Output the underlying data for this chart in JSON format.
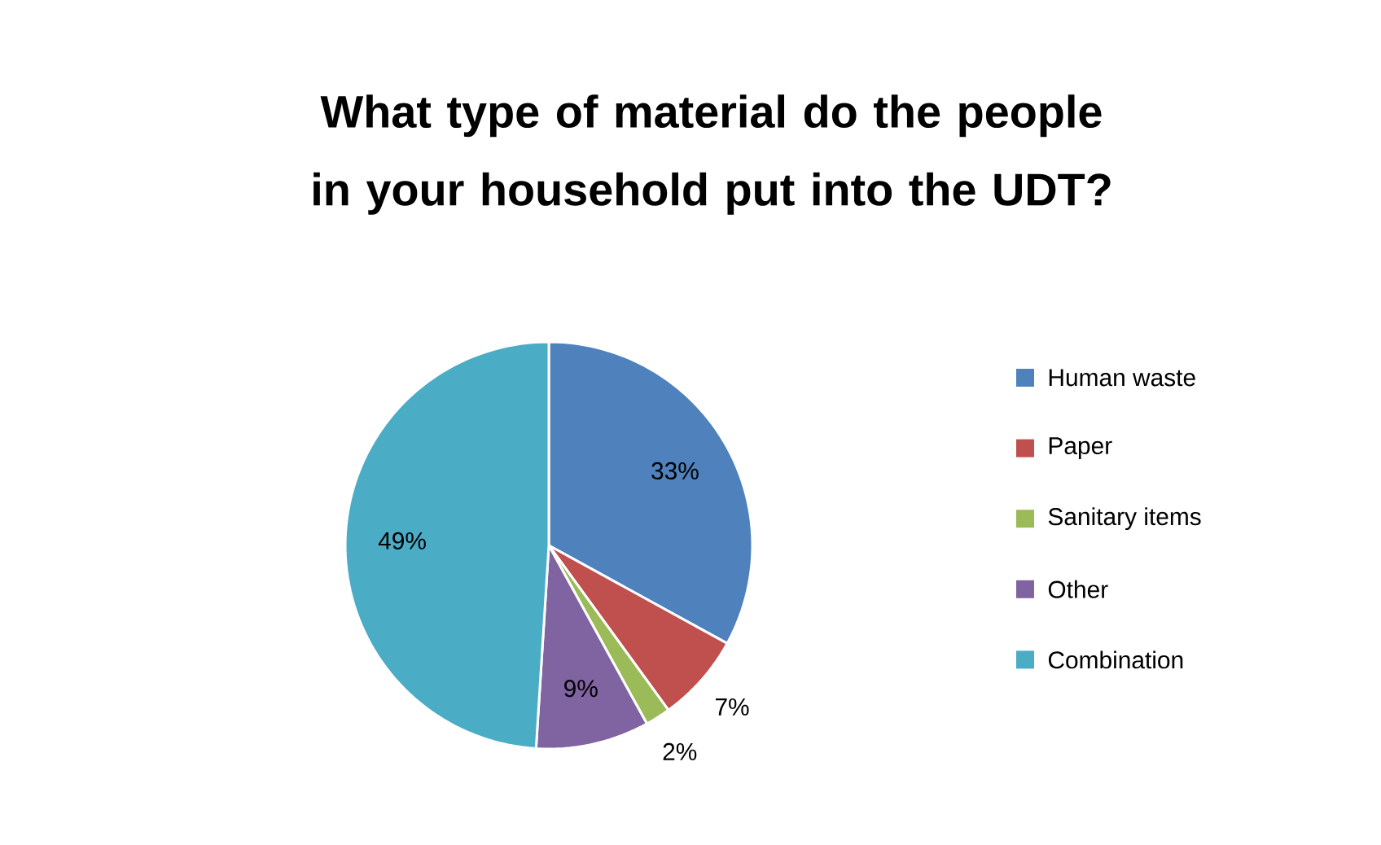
{
  "chart_data": {
    "type": "pie",
    "title": "What type of material do the people in your household put into the UDT?",
    "categories": [
      "Human waste",
      "Paper",
      "Sanitary items",
      "Other",
      "Combination"
    ],
    "values": [
      33,
      7,
      2,
      9,
      49
    ],
    "value_labels": [
      "33%",
      "7%",
      "2%",
      "9%",
      "49%"
    ],
    "colors": [
      "#4f81bd",
      "#c0504d",
      "#9bbb59",
      "#8064a2",
      "#4bacc6"
    ],
    "legend": "right"
  }
}
